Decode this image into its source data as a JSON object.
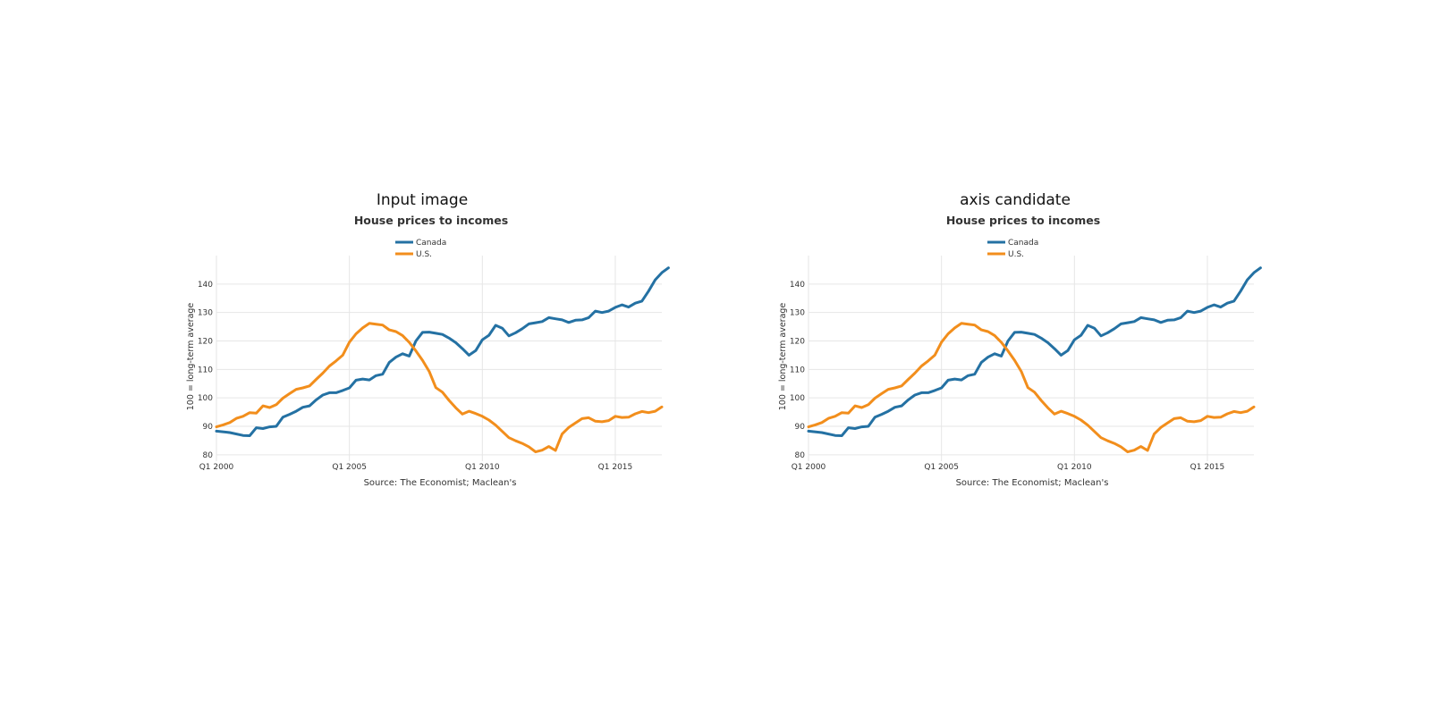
{
  "panels": [
    {
      "heading": "Input image"
    },
    {
      "heading": "axis candidate"
    }
  ],
  "chart_data": {
    "type": "line",
    "title": "House prices to incomes",
    "ylabel": "100 = long-term average",
    "source": "Source: The Economist; Maclean's",
    "x_ticks": [
      {
        "x": 2000.0,
        "label": "Q1 2000"
      },
      {
        "x": 2005.0,
        "label": "Q1 2005"
      },
      {
        "x": 2010.0,
        "label": "Q1 2010"
      },
      {
        "x": 2015.0,
        "label": "Q1 2015"
      }
    ],
    "xlim": [
      2000.0,
      2016.75
    ],
    "ylim": [
      79,
      150
    ],
    "y_ticks": [
      80,
      90,
      100,
      110,
      120,
      130,
      140
    ],
    "grid": true,
    "legend_position": "top-left",
    "series": [
      {
        "name": "Canada",
        "color": "#2471a3",
        "points": [
          [
            2000.0,
            88.3
          ],
          [
            2000.5,
            87.8
          ],
          [
            2001.0,
            86.8
          ],
          [
            2001.25,
            86.7
          ],
          [
            2001.5,
            89.5
          ],
          [
            2001.75,
            89.2
          ],
          [
            2002.0,
            89.8
          ],
          [
            2002.25,
            90.0
          ],
          [
            2002.5,
            93.2
          ],
          [
            2002.75,
            94.2
          ],
          [
            2003.0,
            95.3
          ],
          [
            2003.25,
            96.7
          ],
          [
            2003.5,
            97.2
          ],
          [
            2003.75,
            99.3
          ],
          [
            2004.0,
            101.0
          ],
          [
            2004.25,
            101.8
          ],
          [
            2004.5,
            101.8
          ],
          [
            2004.75,
            102.6
          ],
          [
            2005.0,
            103.5
          ],
          [
            2005.25,
            106.2
          ],
          [
            2005.5,
            106.6
          ],
          [
            2005.75,
            106.3
          ],
          [
            2006.0,
            107.8
          ],
          [
            2006.25,
            108.3
          ],
          [
            2006.5,
            112.5
          ],
          [
            2006.75,
            114.3
          ],
          [
            2007.0,
            115.5
          ],
          [
            2007.25,
            114.7
          ],
          [
            2007.5,
            120.0
          ],
          [
            2007.75,
            123.0
          ],
          [
            2008.0,
            123.1
          ],
          [
            2008.25,
            122.7
          ],
          [
            2008.5,
            122.3
          ],
          [
            2008.75,
            121.0
          ],
          [
            2009.0,
            119.4
          ],
          [
            2009.25,
            117.3
          ],
          [
            2009.5,
            115.0
          ],
          [
            2009.75,
            116.6
          ],
          [
            2010.0,
            120.4
          ],
          [
            2010.25,
            122.0
          ],
          [
            2010.5,
            125.5
          ],
          [
            2010.75,
            124.5
          ],
          [
            2011.0,
            121.8
          ],
          [
            2011.25,
            122.9
          ],
          [
            2011.5,
            124.3
          ],
          [
            2011.75,
            126.0
          ],
          [
            2012.0,
            126.4
          ],
          [
            2012.25,
            126.8
          ],
          [
            2012.5,
            128.2
          ],
          [
            2012.75,
            127.8
          ],
          [
            2013.0,
            127.4
          ],
          [
            2013.25,
            126.5
          ],
          [
            2013.5,
            127.3
          ],
          [
            2013.75,
            127.4
          ],
          [
            2014.0,
            128.2
          ],
          [
            2014.25,
            130.5
          ],
          [
            2014.5,
            130.0
          ],
          [
            2014.75,
            130.5
          ],
          [
            2015.0,
            131.8
          ],
          [
            2015.25,
            132.7
          ],
          [
            2015.5,
            131.9
          ],
          [
            2015.75,
            133.3
          ],
          [
            2016.0,
            134.0
          ],
          [
            2016.25,
            137.5
          ],
          [
            2016.5,
            141.5
          ],
          [
            2016.75,
            144.0
          ],
          [
            2017.0,
            145.7
          ]
        ]
      },
      {
        "name": "U.S.",
        "color": "#f28e1c",
        "points": [
          [
            2000.0,
            89.8
          ],
          [
            2000.25,
            90.5
          ],
          [
            2000.5,
            91.3
          ],
          [
            2000.75,
            92.8
          ],
          [
            2001.0,
            93.5
          ],
          [
            2001.25,
            94.8
          ],
          [
            2001.5,
            94.6
          ],
          [
            2001.75,
            97.2
          ],
          [
            2002.0,
            96.6
          ],
          [
            2002.25,
            97.6
          ],
          [
            2002.5,
            99.9
          ],
          [
            2002.75,
            101.5
          ],
          [
            2003.0,
            103.0
          ],
          [
            2003.25,
            103.5
          ],
          [
            2003.5,
            104.2
          ],
          [
            2003.75,
            106.5
          ],
          [
            2004.0,
            108.7
          ],
          [
            2004.25,
            111.2
          ],
          [
            2004.5,
            113.0
          ],
          [
            2004.75,
            115.0
          ],
          [
            2005.0,
            119.6
          ],
          [
            2005.25,
            122.5
          ],
          [
            2005.5,
            124.6
          ],
          [
            2005.75,
            126.2
          ],
          [
            2006.0,
            125.9
          ],
          [
            2006.25,
            125.6
          ],
          [
            2006.5,
            123.9
          ],
          [
            2006.75,
            123.3
          ],
          [
            2007.0,
            121.9
          ],
          [
            2007.25,
            119.5
          ],
          [
            2007.5,
            116.5
          ],
          [
            2007.75,
            113.2
          ],
          [
            2008.0,
            109.3
          ],
          [
            2008.25,
            103.6
          ],
          [
            2008.5,
            102.0
          ],
          [
            2008.75,
            99.1
          ],
          [
            2009.0,
            96.5
          ],
          [
            2009.25,
            94.3
          ],
          [
            2009.5,
            95.3
          ],
          [
            2009.75,
            94.5
          ],
          [
            2010.0,
            93.5
          ],
          [
            2010.25,
            92.2
          ],
          [
            2010.5,
            90.4
          ],
          [
            2010.75,
            88.2
          ],
          [
            2011.0,
            86.0
          ],
          [
            2011.25,
            84.9
          ],
          [
            2011.5,
            84.0
          ],
          [
            2011.75,
            82.8
          ],
          [
            2012.0,
            81.0
          ],
          [
            2012.25,
            81.6
          ],
          [
            2012.5,
            82.9
          ],
          [
            2012.75,
            81.5
          ],
          [
            2013.0,
            87.3
          ],
          [
            2013.25,
            89.6
          ],
          [
            2013.5,
            91.2
          ],
          [
            2013.75,
            92.7
          ],
          [
            2014.0,
            93.0
          ],
          [
            2014.25,
            91.8
          ],
          [
            2014.5,
            91.6
          ],
          [
            2014.75,
            92.0
          ],
          [
            2015.0,
            93.5
          ],
          [
            2015.25,
            93.1
          ],
          [
            2015.5,
            93.2
          ],
          [
            2015.75,
            94.4
          ],
          [
            2016.0,
            95.2
          ],
          [
            2016.25,
            94.8
          ],
          [
            2016.5,
            95.3
          ],
          [
            2016.75,
            96.8
          ]
        ]
      }
    ]
  }
}
